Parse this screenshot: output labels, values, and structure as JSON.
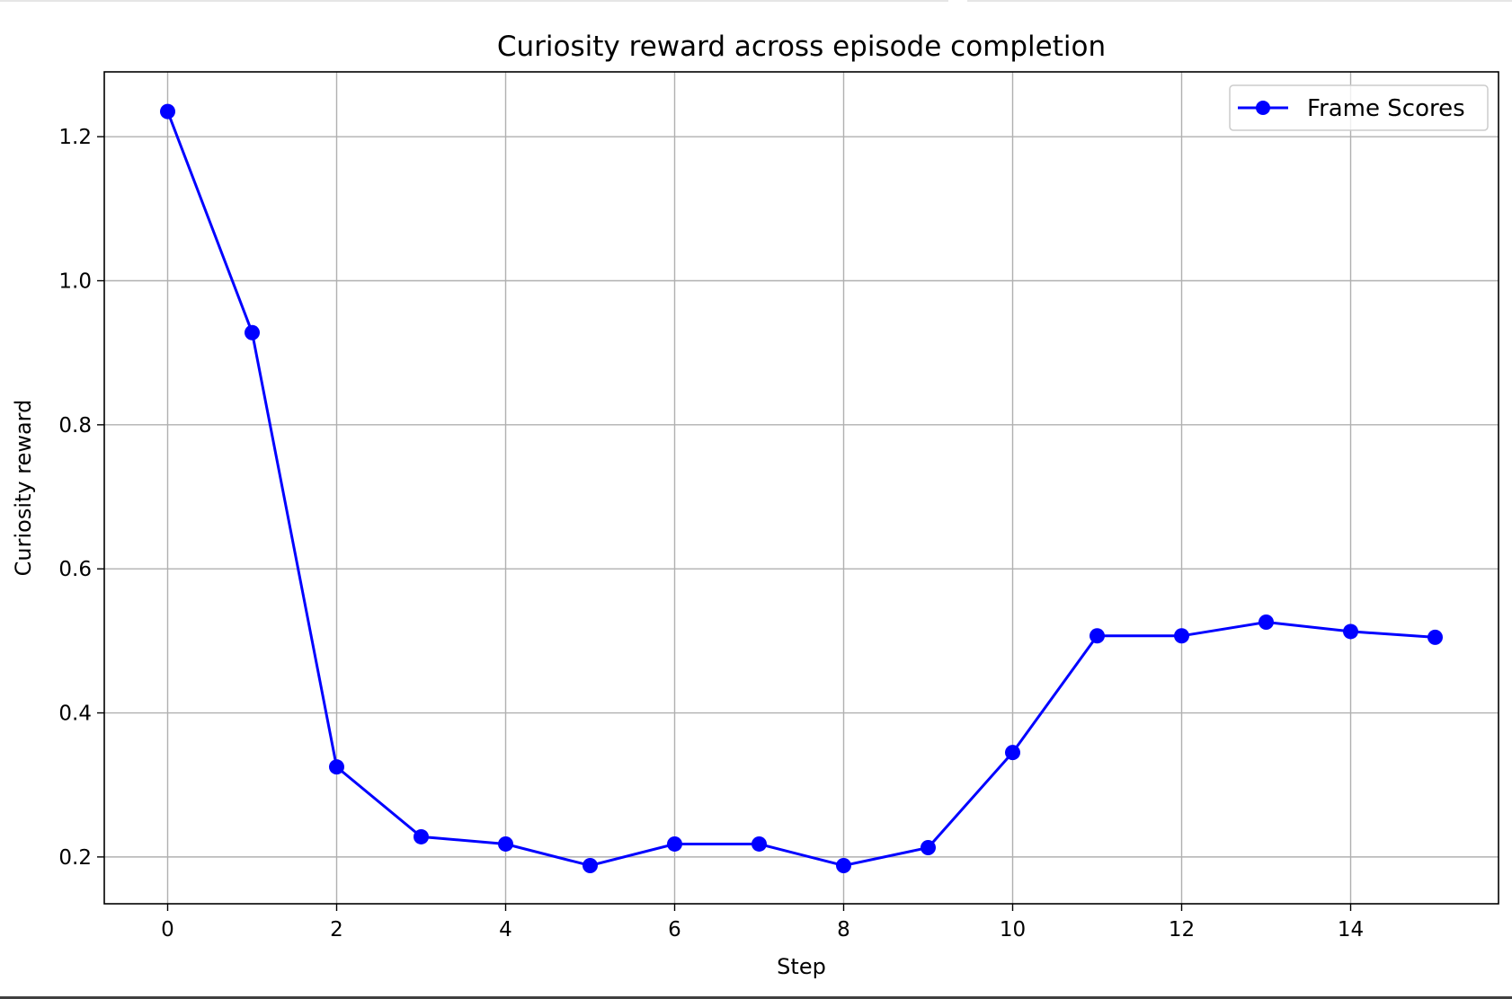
{
  "chart_data": {
    "type": "line",
    "title": "Curiosity reward across episode completion",
    "xlabel": "Step",
    "ylabel": "Curiosity reward",
    "xlim": [
      -0.75,
      15.75
    ],
    "ylim": [
      0.135,
      1.29
    ],
    "xticks": [
      0,
      2,
      4,
      6,
      8,
      10,
      12,
      14
    ],
    "yticks": [
      0.2,
      0.4,
      0.6,
      0.8,
      1.0,
      1.2
    ],
    "ytick_labels": [
      "0.2",
      "0.4",
      "0.6",
      "0.8",
      "1.0",
      "1.2"
    ],
    "grid": true,
    "legend_position": "top-right",
    "series": [
      {
        "name": "Frame Scores",
        "color": "#0000ff",
        "marker": "circle",
        "x": [
          0,
          1,
          2,
          3,
          4,
          5,
          6,
          7,
          8,
          9,
          10,
          11,
          12,
          13,
          14,
          15
        ],
        "y": [
          1.235,
          0.928,
          0.325,
          0.228,
          0.218,
          0.188,
          0.218,
          0.218,
          0.188,
          0.213,
          0.345,
          0.507,
          0.507,
          0.526,
          0.513,
          0.505
        ]
      }
    ]
  }
}
